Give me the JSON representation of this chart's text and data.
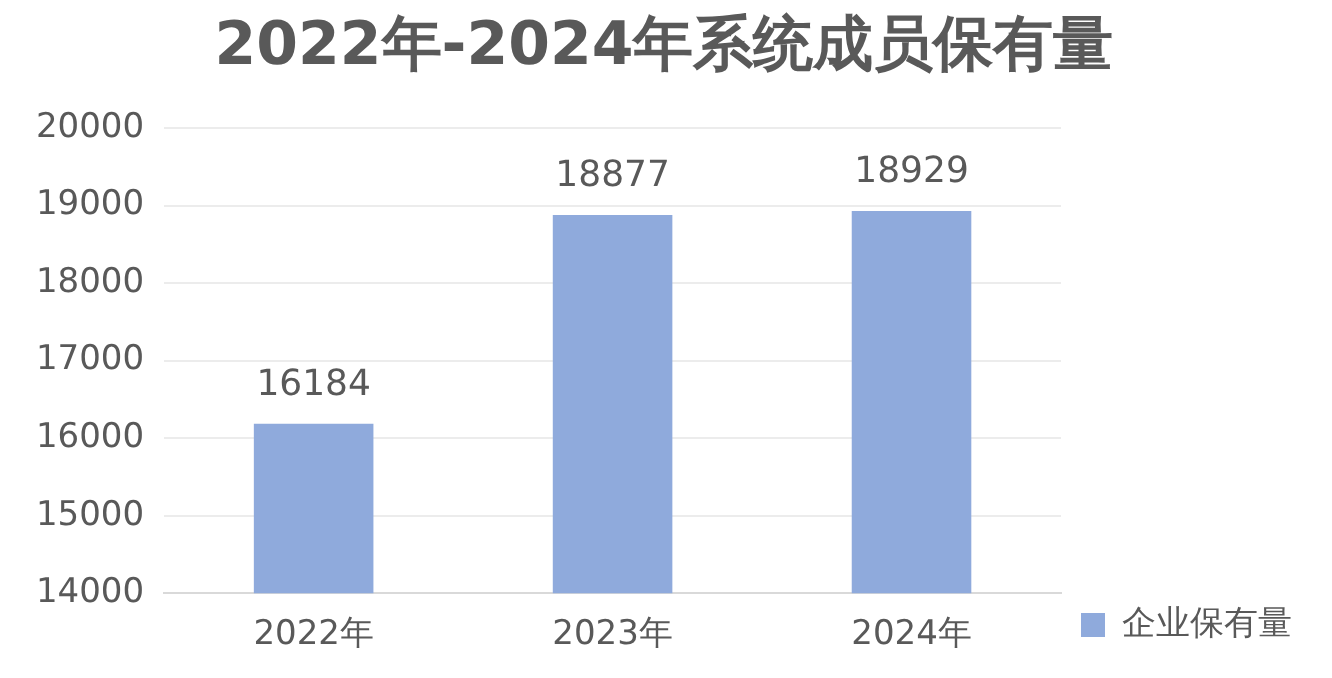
{
  "chart_data": {
    "type": "bar",
    "title": "2022年-2024年系统成员保有量",
    "categories": [
      "2022年",
      "2023年",
      "2024年"
    ],
    "series": [
      {
        "name": "企业保有量",
        "color": "#8faadc",
        "values": [
          16184,
          18877,
          18929
        ]
      }
    ],
    "ylim": [
      14000,
      20000
    ],
    "yticks": [
      14000,
      15000,
      16000,
      17000,
      18000,
      19000,
      20000
    ],
    "grid": "y",
    "legend": "bottom right",
    "data_labels": true
  }
}
